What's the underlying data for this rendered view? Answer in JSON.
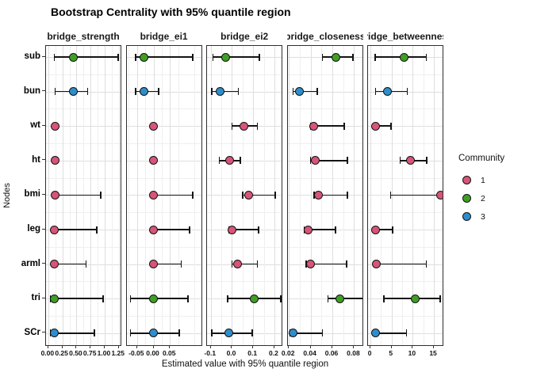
{
  "title": "Bootstrap Centrality with 95% quantile region",
  "legend": {
    "title": "Community",
    "items": [
      {
        "label": "1",
        "color": "#d65578"
      },
      {
        "label": "2",
        "color": "#3f9e25"
      },
      {
        "label": "3",
        "color": "#2e8ecb"
      }
    ]
  },
  "chart_data": {
    "type": "scatter",
    "subtype": "faceted horizontal dot plot with 95% quantile error bars",
    "title": "Bootstrap Centrality with 95% quantile region",
    "xlabel": "Estimated value with 95% quantile region",
    "ylabel": "Nodes",
    "grid": true,
    "legend_position": "right",
    "legend_title": "Community",
    "nodes": [
      "sub",
      "bun",
      "wt",
      "ht",
      "bmi",
      "leg",
      "arml",
      "tri",
      "SCr"
    ],
    "node_community": {
      "sub": 2,
      "bun": 3,
      "wt": 1,
      "ht": 1,
      "bmi": 1,
      "leg": 1,
      "arml": 1,
      "tri": 2,
      "SCr": 3
    },
    "community_colors": {
      "1": "#d65578",
      "2": "#3f9e25",
      "3": "#2e8ecb"
    },
    "facets": [
      {
        "label": "bridge_strength",
        "xlim": [
          -0.04,
          1.31
        ],
        "ticks": [
          0,
          0.25,
          0.5,
          0.75,
          1.0,
          1.25
        ],
        "tick_labels": [
          "0.00",
          "0.25",
          "0.50",
          "0.75",
          "1.00",
          "1.25"
        ],
        "points": [
          {
            "node": "sub",
            "value": 0.45,
            "lo": 0.11,
            "hi": 1.24
          },
          {
            "node": "bun",
            "value": 0.45,
            "lo": 0.12,
            "hi": 0.7
          },
          {
            "node": "wt",
            "value": 0.12,
            "lo": 0.1,
            "hi": 0.16
          },
          {
            "node": "ht",
            "value": 0.12,
            "lo": 0.1,
            "hi": 0.16
          },
          {
            "node": "bmi",
            "value": 0.12,
            "lo": 0.1,
            "hi": 0.93
          },
          {
            "node": "leg",
            "value": 0.11,
            "lo": 0.09,
            "hi": 0.86
          },
          {
            "node": "arml",
            "value": 0.11,
            "lo": 0.09,
            "hi": 0.67
          },
          {
            "node": "tri",
            "value": 0.11,
            "lo": 0.04,
            "hi": 0.97
          },
          {
            "node": "SCr",
            "value": 0.11,
            "lo": 0.04,
            "hi": 0.82
          }
        ]
      },
      {
        "label": "bridge_ei1",
        "xlim": [
          -0.082,
          0.15
        ],
        "ticks": [
          -0.05,
          0,
          0.05
        ],
        "tick_labels": [
          "-0.05",
          "0.00",
          "0.05"
        ],
        "points": [
          {
            "node": "sub",
            "value": -0.03,
            "lo": -0.055,
            "hi": 0.12
          },
          {
            "node": "bun",
            "value": -0.03,
            "lo": -0.055,
            "hi": 0.015
          },
          {
            "node": "wt",
            "value": 0.0,
            "lo": 0.0,
            "hi": 0.0
          },
          {
            "node": "ht",
            "value": 0.0,
            "lo": 0.0,
            "hi": 0.0
          },
          {
            "node": "bmi",
            "value": 0.0,
            "lo": 0.0,
            "hi": 0.12
          },
          {
            "node": "leg",
            "value": 0.0,
            "lo": 0.0,
            "hi": 0.11
          },
          {
            "node": "arml",
            "value": 0.0,
            "lo": 0.0,
            "hi": 0.085
          },
          {
            "node": "tri",
            "value": 0.0,
            "lo": -0.07,
            "hi": 0.105
          },
          {
            "node": "SCr",
            "value": 0.0,
            "lo": -0.07,
            "hi": 0.078
          }
        ]
      },
      {
        "label": "bridge_ei2",
        "xlim": [
          -0.117,
          0.242
        ],
        "ticks": [
          -0.1,
          0,
          0.1,
          0.2
        ],
        "tick_labels": [
          "-0.1",
          "0.0",
          "0.1",
          "0.2"
        ],
        "points": [
          {
            "node": "sub",
            "value": -0.03,
            "lo": -0.09,
            "hi": 0.13
          },
          {
            "node": "bun",
            "value": -0.055,
            "lo": -0.095,
            "hi": 0.03
          },
          {
            "node": "wt",
            "value": 0.055,
            "lo": 0.0,
            "hi": 0.12
          },
          {
            "node": "ht",
            "value": -0.01,
            "lo": -0.06,
            "hi": 0.04
          },
          {
            "node": "bmi",
            "value": 0.08,
            "lo": 0.05,
            "hi": 0.205
          },
          {
            "node": "leg",
            "value": 0.0,
            "lo": -0.012,
            "hi": 0.125
          },
          {
            "node": "arml",
            "value": 0.025,
            "lo": 0.0,
            "hi": 0.12
          },
          {
            "node": "tri",
            "value": 0.105,
            "lo": -0.02,
            "hi": 0.23
          },
          {
            "node": "SCr",
            "value": -0.013,
            "lo": -0.095,
            "hi": 0.095
          }
        ]
      },
      {
        "label": "bridge_closeness",
        "xlim": [
          0.019,
          0.089
        ],
        "ticks": [
          0.02,
          0.04,
          0.06,
          0.08
        ],
        "tick_labels": [
          "0.02",
          "0.04",
          "0.06",
          "0.08"
        ],
        "points": [
          {
            "node": "sub",
            "value": 0.063,
            "lo": 0.051,
            "hi": 0.079
          },
          {
            "node": "bun",
            "value": 0.03,
            "lo": 0.024,
            "hi": 0.046
          },
          {
            "node": "wt",
            "value": 0.043,
            "lo": 0.04,
            "hi": 0.071
          },
          {
            "node": "ht",
            "value": 0.044,
            "lo": 0.04,
            "hi": 0.074
          },
          {
            "node": "bmi",
            "value": 0.047,
            "lo": 0.043,
            "hi": 0.074
          },
          {
            "node": "leg",
            "value": 0.038,
            "lo": 0.034,
            "hi": 0.063
          },
          {
            "node": "arml",
            "value": 0.04,
            "lo": 0.036,
            "hi": 0.073
          },
          {
            "node": "tri",
            "value": 0.067,
            "lo": 0.056,
            "hi": 0.089
          },
          {
            "node": "SCr",
            "value": 0.024,
            "lo": 0.021,
            "hi": 0.051
          }
        ]
      },
      {
        "label": "bridge_betweenness",
        "xlim": [
          -0.5,
          17.5
        ],
        "ticks": [
          0,
          5,
          10,
          15
        ],
        "tick_labels": [
          "0",
          "5",
          "10",
          "15"
        ],
        "points": [
          {
            "node": "sub",
            "value": 8.0,
            "lo": 1.1,
            "hi": 13.2
          },
          {
            "node": "bun",
            "value": 4.0,
            "lo": 1.2,
            "hi": 8.7
          },
          {
            "node": "wt",
            "value": 1.3,
            "lo": 0.9,
            "hi": 4.9
          },
          {
            "node": "ht",
            "value": 9.5,
            "lo": 7.0,
            "hi": 13.3
          },
          {
            "node": "bmi",
            "value": 16.5,
            "lo": 4.8,
            "hi": 16.8
          },
          {
            "node": "leg",
            "value": 1.3,
            "lo": 0.9,
            "hi": 5.2
          },
          {
            "node": "arml",
            "value": 1.4,
            "lo": 1.0,
            "hi": 13.2
          },
          {
            "node": "tri",
            "value": 10.5,
            "lo": 3.2,
            "hi": 16.5
          },
          {
            "node": "SCr",
            "value": 1.2,
            "lo": 0.9,
            "hi": 8.5
          }
        ]
      }
    ]
  }
}
